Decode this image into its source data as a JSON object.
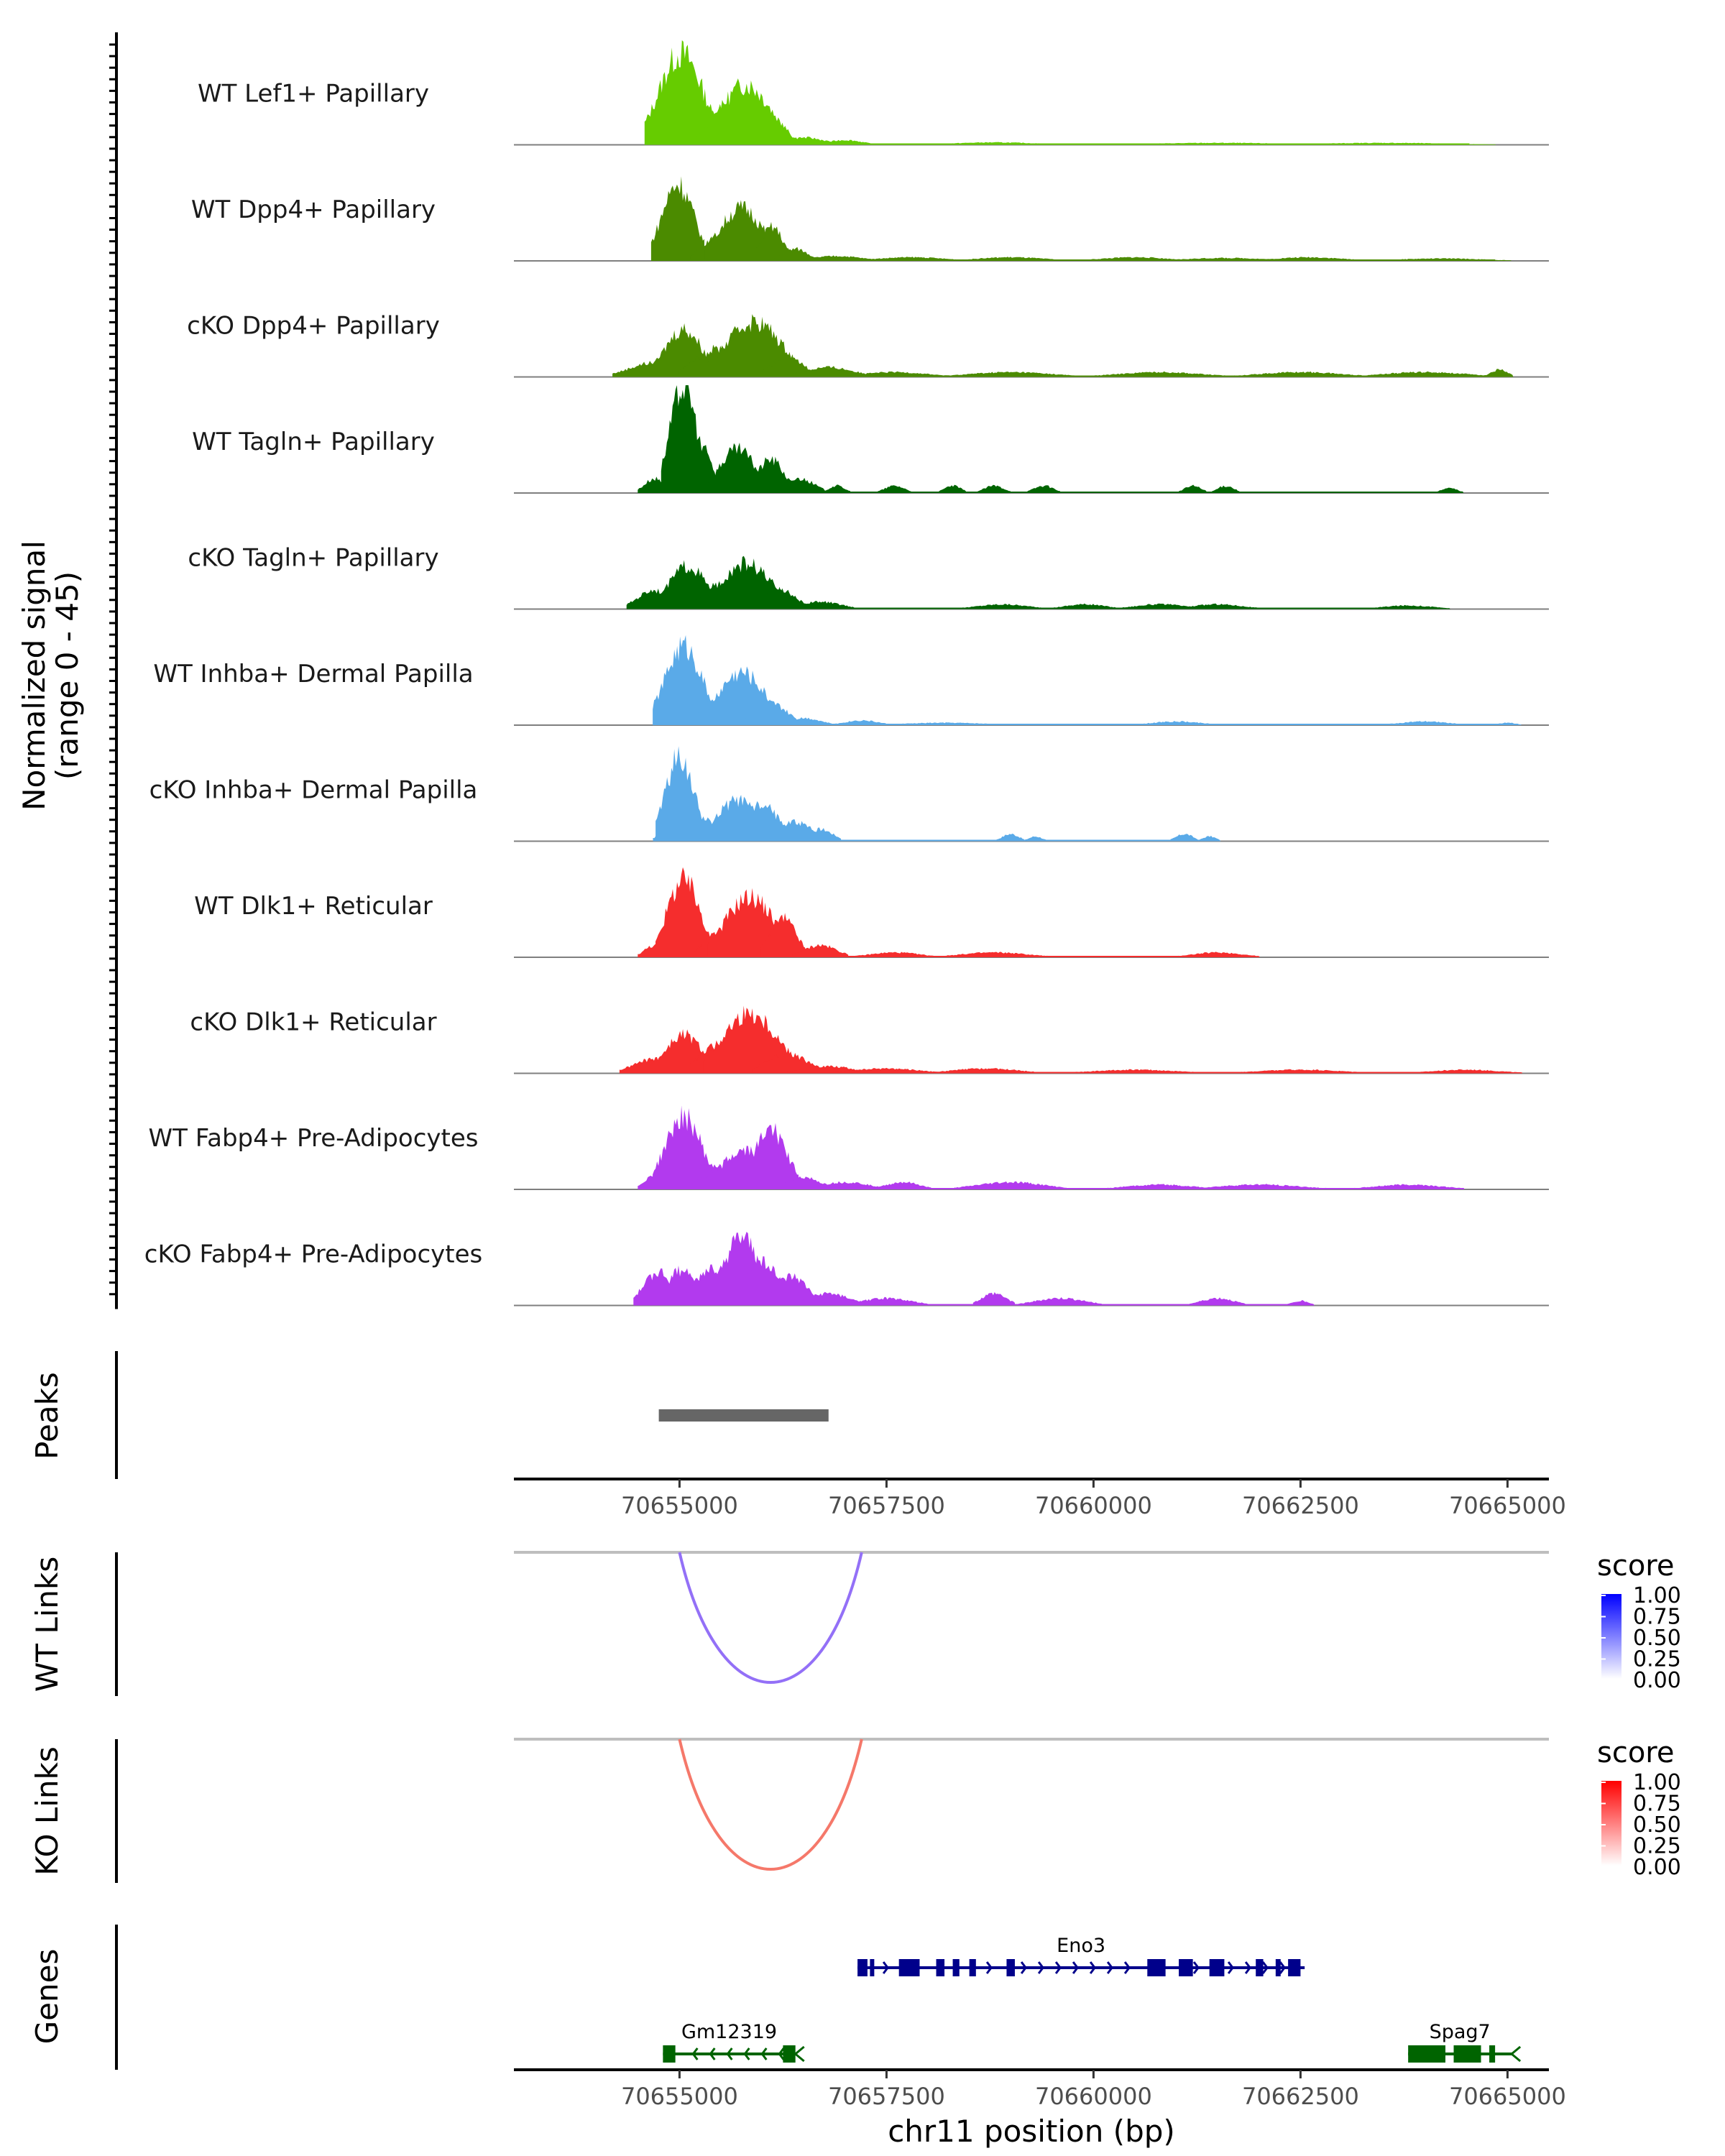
{
  "chart_data": {
    "type": "genome-track",
    "chromosome": "chr11",
    "xlim": [
      70653000,
      70665500
    ],
    "x_ticks": [
      70655000,
      70657500,
      70660000,
      70662500,
      70665000
    ],
    "x_tick_labels": [
      "70655000",
      "70657500",
      "70660000",
      "70662500",
      "70665000"
    ],
    "xlabel": "chr11 position (bp)",
    "coverage": {
      "ylabel_line1": "Normalized signal",
      "ylabel_line2": "(range 0 - 45)",
      "ylim": [
        0,
        45
      ],
      "tracks": [
        {
          "name": "WT Lef1+ Papillary",
          "color": "#66cc00",
          "peaks": [
            [
              70655020,
              38,
              260
            ],
            [
              70655500,
              15,
              180
            ],
            [
              70655800,
              25,
              300
            ],
            [
              70656150,
              10,
              150
            ],
            [
              70656500,
              3,
              250
            ],
            [
              70657000,
              2,
              200
            ],
            [
              70658800,
              1,
              500
            ],
            [
              70661500,
              0.8,
              800
            ],
            [
              70663500,
              0.8,
              800
            ]
          ]
        },
        {
          "name": "WT Dpp4+ Papillary",
          "color": "#4b8b00",
          "peaks": [
            [
              70654980,
              32,
              190
            ],
            [
              70655400,
              9,
              160
            ],
            [
              70655750,
              22,
              260
            ],
            [
              70656120,
              14,
              130
            ],
            [
              70656400,
              5,
              150
            ],
            [
              70656900,
              2,
              300
            ],
            [
              70657800,
              1.5,
              400
            ],
            [
              70659000,
              1.5,
              400
            ],
            [
              70660500,
              1.5,
              400
            ],
            [
              70661600,
              1.2,
              500
            ],
            [
              70662600,
              1.5,
              400
            ],
            [
              70664200,
              1,
              500
            ]
          ]
        },
        {
          "name": "cKO Dpp4+ Papillary",
          "color": "#4b8b00",
          "peaks": [
            [
              70654700,
              6,
              300
            ],
            [
              70655050,
              20,
              220
            ],
            [
              70655500,
              12,
              300
            ],
            [
              70655900,
              23,
              330
            ],
            [
              70656300,
              8,
              200
            ],
            [
              70656800,
              4,
              300
            ],
            [
              70657600,
              2,
              400
            ],
            [
              70659000,
              2,
              500
            ],
            [
              70660800,
              2,
              500
            ],
            [
              70662500,
              2,
              500
            ],
            [
              70664000,
              2,
              500
            ],
            [
              70664900,
              3,
              100
            ]
          ]
        },
        {
          "name": "WT Tagln+ Papillary",
          "color": "#006400",
          "peaks": [
            [
              70654700,
              6,
              120
            ],
            [
              70655050,
              45,
              160
            ],
            [
              70655280,
              18,
              120
            ],
            [
              70655700,
              18,
              220
            ],
            [
              70656100,
              14,
              160
            ],
            [
              70656450,
              6,
              180
            ],
            [
              70656900,
              3,
              100
            ],
            [
              70657600,
              3,
              120
            ],
            [
              70658300,
              3,
              100
            ],
            [
              70658800,
              3,
              120
            ],
            [
              70659400,
              3,
              120
            ],
            [
              70661200,
              3,
              100
            ],
            [
              70661600,
              3,
              100
            ],
            [
              70664300,
              2,
              100
            ]
          ]
        },
        {
          "name": "cKO Tagln+ Papillary",
          "color": "#006400",
          "peaks": [
            [
              70654700,
              8,
              200
            ],
            [
              70655100,
              18,
              220
            ],
            [
              70655450,
              10,
              180
            ],
            [
              70655800,
              19,
              300
            ],
            [
              70656200,
              8,
              200
            ],
            [
              70656700,
              3,
              250
            ],
            [
              70658900,
              2,
              300
            ],
            [
              70659900,
              2,
              250
            ],
            [
              70660800,
              2,
              300
            ],
            [
              70661500,
              2,
              300
            ],
            [
              70663800,
              1.5,
              300
            ]
          ]
        },
        {
          "name": "WT Inhba+ Dermal Papilla",
          "color": "#5aaae8",
          "peaks": [
            [
              70655050,
              33,
              220
            ],
            [
              70655400,
              10,
              160
            ],
            [
              70655750,
              22,
              280
            ],
            [
              70656100,
              9,
              200
            ],
            [
              70656500,
              3,
              200
            ],
            [
              70657200,
              2,
              200
            ],
            [
              70658200,
              1,
              500
            ],
            [
              70661000,
              1.5,
              300
            ],
            [
              70664000,
              1.5,
              300
            ],
            [
              70665000,
              1,
              100
            ]
          ]
        },
        {
          "name": "cKO Inhba+ Dermal Papilla",
          "color": "#5aaae8",
          "peaks": [
            [
              70654850,
              5,
              100
            ],
            [
              70655000,
              35,
              170
            ],
            [
              70655300,
              10,
              150
            ],
            [
              70655700,
              17,
              250
            ],
            [
              70656000,
              15,
              200
            ],
            [
              70656400,
              8,
              200
            ],
            [
              70656700,
              5,
              150
            ],
            [
              70659000,
              3,
              100
            ],
            [
              70659300,
              2,
              80
            ],
            [
              70661100,
              3,
              100
            ],
            [
              70661400,
              2,
              80
            ]
          ]
        },
        {
          "name": "WT Dlk1+ Reticular",
          "color": "#f52d2d",
          "peaks": [
            [
              70654700,
              5,
              120
            ],
            [
              70655050,
              32,
              200
            ],
            [
              70655450,
              10,
              160
            ],
            [
              70655850,
              25,
              300
            ],
            [
              70656250,
              16,
              160
            ],
            [
              70656700,
              5,
              200
            ],
            [
              70657600,
              2,
              300
            ],
            [
              70658800,
              2,
              400
            ],
            [
              70661500,
              2,
              300
            ]
          ]
        },
        {
          "name": "cKO Dlk1+ Reticular",
          "color": "#f52d2d",
          "peaks": [
            [
              70654700,
              6,
              250
            ],
            [
              70655050,
              16,
              220
            ],
            [
              70655500,
              12,
              250
            ],
            [
              70655850,
              25,
              330
            ],
            [
              70656300,
              8,
              250
            ],
            [
              70656800,
              3,
              300
            ],
            [
              70657500,
              2,
              400
            ],
            [
              70658700,
              2,
              400
            ],
            [
              70660500,
              1.5,
              500
            ],
            [
              70662500,
              1.5,
              500
            ],
            [
              70664500,
              1.5,
              400
            ]
          ]
        },
        {
          "name": "WT Fabp4+ Pre-Adipocytes",
          "color": "#b23aee",
          "peaks": [
            [
              70654700,
              6,
              120
            ],
            [
              70655050,
              30,
              220
            ],
            [
              70655450,
              10,
              180
            ],
            [
              70655800,
              16,
              300
            ],
            [
              70656100,
              25,
              200
            ],
            [
              70656500,
              5,
              200
            ],
            [
              70657000,
              3,
              300
            ],
            [
              70657700,
              3,
              200
            ],
            [
              70659000,
              3,
              400
            ],
            [
              70660800,
              2,
              400
            ],
            [
              70662000,
              2,
              500
            ],
            [
              70663800,
              2,
              400
            ]
          ]
        },
        {
          "name": "cKO Fabp4+ Pre-Adipocytes",
          "color": "#b23aee",
          "peaks": [
            [
              70654750,
              14,
              180
            ],
            [
              70655050,
              15,
              200
            ],
            [
              70655400,
              16,
              200
            ],
            [
              70655750,
              28,
              220
            ],
            [
              70656000,
              19,
              200
            ],
            [
              70656350,
              12,
              200
            ],
            [
              70656800,
              5,
              250
            ],
            [
              70657500,
              3,
              300
            ],
            [
              70658800,
              5,
              150
            ],
            [
              70659600,
              3,
              300
            ],
            [
              70661500,
              3,
              200
            ],
            [
              70662500,
              2,
              100
            ]
          ]
        }
      ]
    },
    "peaks_track": {
      "label": "Peaks",
      "regions": [
        [
          70654750,
          70656800
        ]
      ]
    },
    "links": [
      {
        "label": "WT Links",
        "color": "#9370f7",
        "start": 70655000,
        "end": 70657200,
        "score": 0.55,
        "legend": {
          "title": "score",
          "labels": [
            "1.00",
            "0.75",
            "0.50",
            "0.25",
            "0.00"
          ],
          "color_high": "#0000ff",
          "color_low": "#ffffff"
        }
      },
      {
        "label": "KO Links",
        "color": "#f5786a",
        "start": 70655000,
        "end": 70657200,
        "score": 0.55,
        "legend": {
          "title": "score",
          "labels": [
            "1.00",
            "0.75",
            "0.50",
            "0.25",
            "0.00"
          ],
          "color_high": "#ff0000",
          "color_low": "#ffffff"
        }
      }
    ],
    "genes_track": {
      "label": "Genes",
      "genes": [
        {
          "name": "Eno3",
          "strand": "+",
          "color": "#00008b",
          "start": 70657150,
          "end": 70662550,
          "row": 0,
          "exons": [
            [
              70657150,
              70657270
            ],
            [
              70657300,
              70657350
            ],
            [
              70657650,
              70657900
            ],
            [
              70658100,
              70658200
            ],
            [
              70658300,
              70658380
            ],
            [
              70658500,
              70658580
            ],
            [
              70658950,
              70659050
            ],
            [
              70660650,
              70660870
            ],
            [
              70661030,
              70661200
            ],
            [
              70661400,
              70661580
            ],
            [
              70661960,
              70662050
            ],
            [
              70662200,
              70662260
            ],
            [
              70662350,
              70662500
            ]
          ]
        },
        {
          "name": "Gm12319",
          "strand": "-",
          "color": "#006400",
          "start": 70654800,
          "end": 70656400,
          "row": 1,
          "exons": [
            [
              70654800,
              70654950
            ],
            [
              70656250,
              70656400
            ]
          ]
        },
        {
          "name": "Spag7",
          "strand": "-",
          "color": "#006400",
          "start": 70663800,
          "end": 70665050,
          "row": 1,
          "exons": [
            [
              70663800,
              70664250
            ],
            [
              70664350,
              70664680
            ],
            [
              70664780,
              70664850
            ]
          ]
        }
      ]
    }
  }
}
